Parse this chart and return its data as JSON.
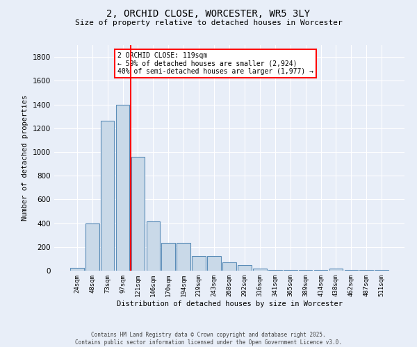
{
  "title": "2, ORCHID CLOSE, WORCESTER, WR5 3LY",
  "subtitle": "Size of property relative to detached houses in Worcester",
  "xlabel": "Distribution of detached houses by size in Worcester",
  "ylabel": "Number of detached properties",
  "categories": [
    "24sqm",
    "48sqm",
    "73sqm",
    "97sqm",
    "121sqm",
    "146sqm",
    "170sqm",
    "194sqm",
    "219sqm",
    "243sqm",
    "268sqm",
    "292sqm",
    "316sqm",
    "341sqm",
    "365sqm",
    "389sqm",
    "414sqm",
    "438sqm",
    "462sqm",
    "487sqm",
    "511sqm"
  ],
  "values": [
    25,
    395,
    1265,
    1400,
    960,
    415,
    235,
    235,
    120,
    120,
    70,
    45,
    15,
    5,
    5,
    5,
    5,
    15,
    5,
    5,
    5
  ],
  "bar_color": "#c9d9e8",
  "bar_edge_color": "#5b8db8",
  "background_color": "#e8eef8",
  "grid_color": "#ffffff",
  "vline_color": "red",
  "annotation_text": "2 ORCHID CLOSE: 119sqm\n← 59% of detached houses are smaller (2,924)\n40% of semi-detached houses are larger (1,977) →",
  "annotation_box_color": "white",
  "annotation_box_edge": "red",
  "ylim": [
    0,
    1900
  ],
  "yticks": [
    0,
    200,
    400,
    600,
    800,
    1000,
    1200,
    1400,
    1600,
    1800
  ],
  "footer_line1": "Contains HM Land Registry data © Crown copyright and database right 2025.",
  "footer_line2": "Contains public sector information licensed under the Open Government Licence v3.0."
}
